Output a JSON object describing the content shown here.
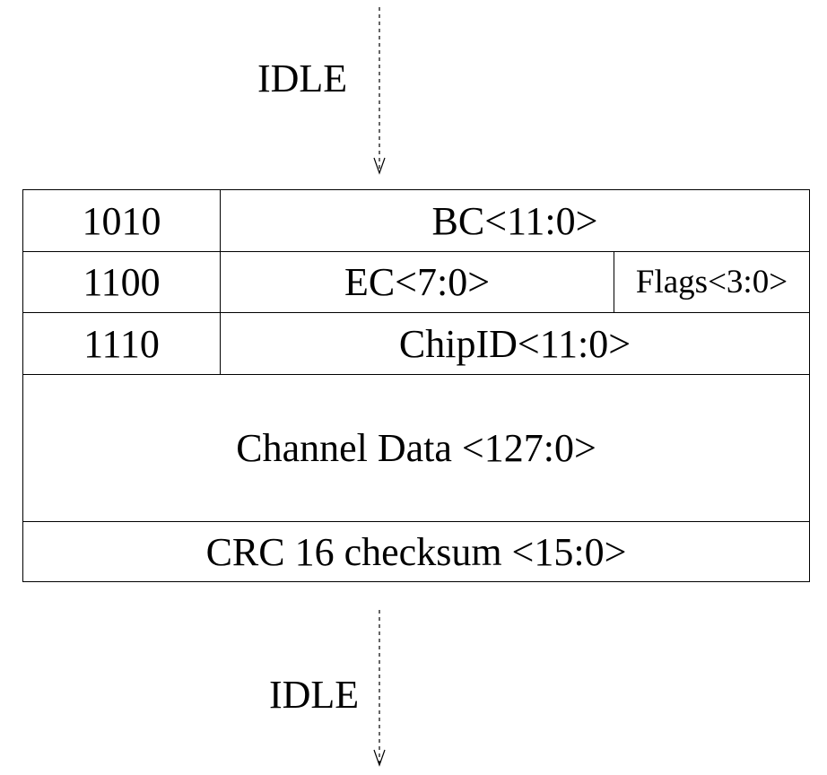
{
  "top_label": "IDLE",
  "bottom_label": "IDLE",
  "packet": {
    "rows": [
      {
        "header": "1010",
        "fields": [
          "BC<11:0>"
        ]
      },
      {
        "header": "1100",
        "fields": [
          "EC<7:0>",
          "Flags<3:0>"
        ]
      },
      {
        "header": "1110",
        "fields": [
          "ChipID<11:0>"
        ]
      }
    ],
    "channel_data": "Channel Data <127:0>",
    "crc": "CRC 16 checksum <15:0>"
  }
}
